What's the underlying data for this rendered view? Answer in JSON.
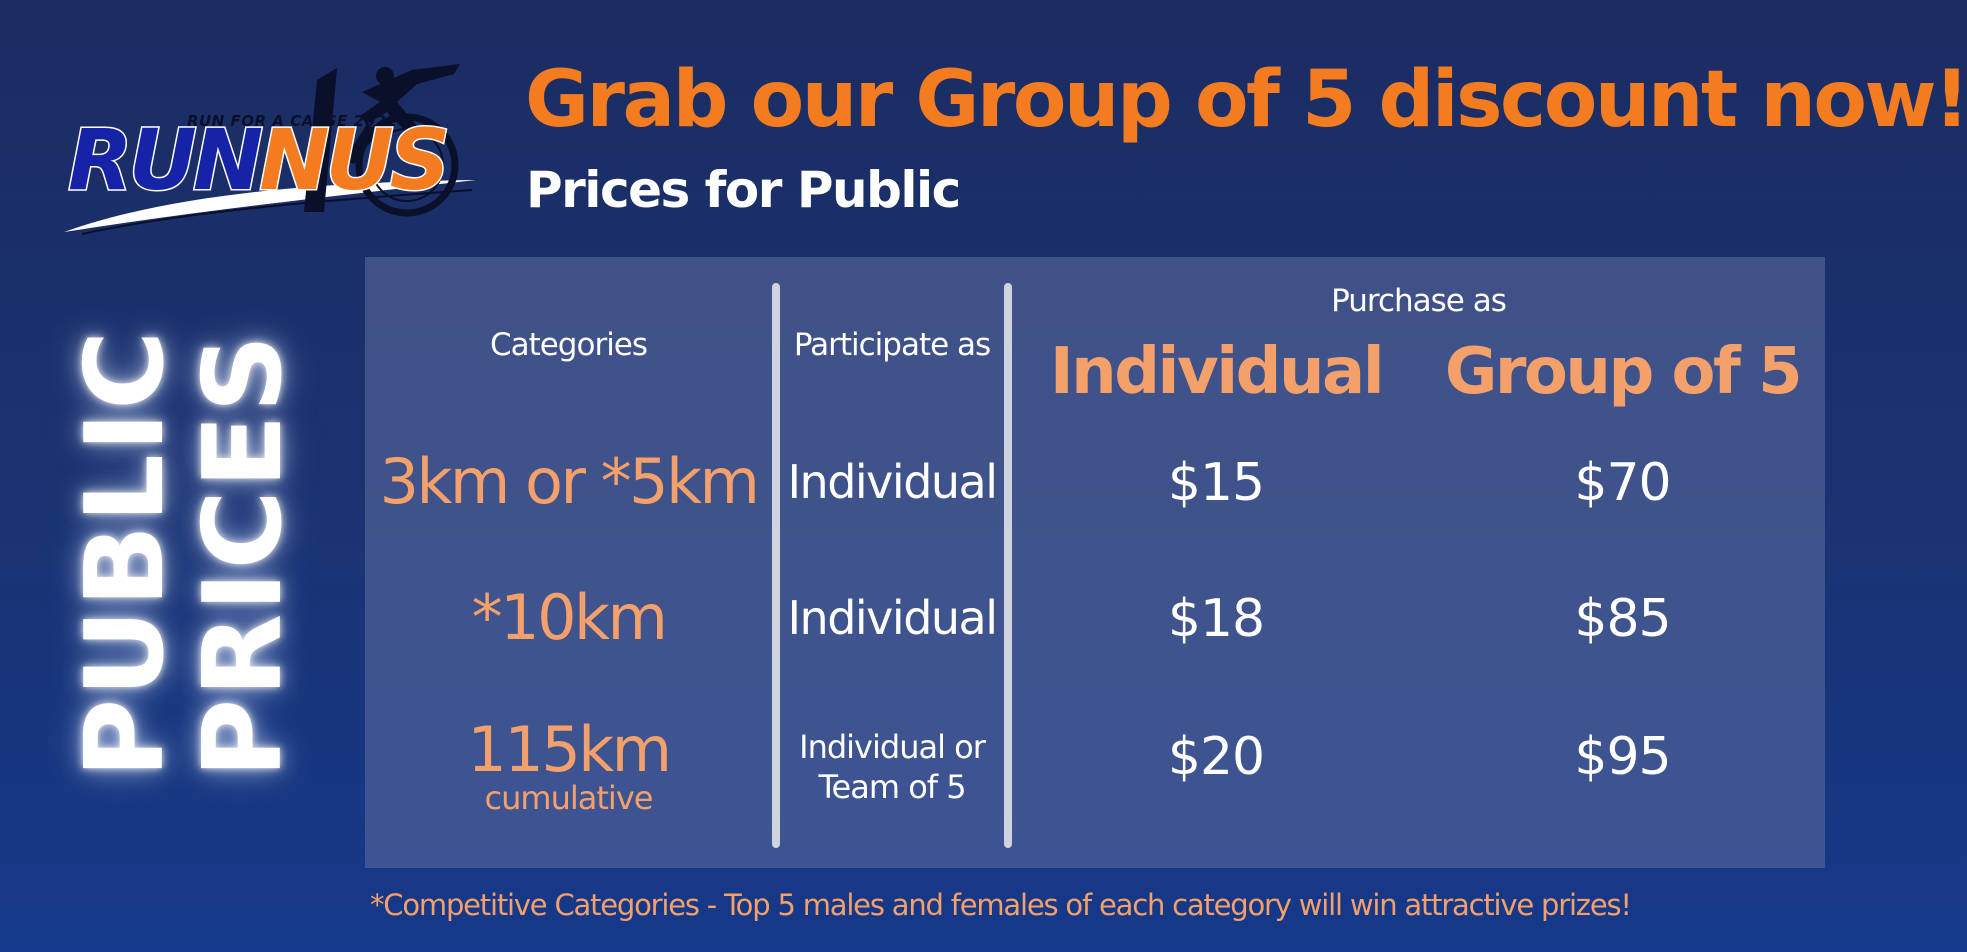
{
  "logo": {
    "tagline": "RUN FOR A CAUSE 2021",
    "word_part1": "RUN",
    "word_part2": "NUS"
  },
  "header": {
    "headline": "Grab our Group of 5 discount now!",
    "subhead": "Prices for Public"
  },
  "side_title": {
    "line1": "PUBLIC",
    "line2": "PRICES"
  },
  "table": {
    "headers": {
      "categories": "Categories",
      "participate_as": "Participate as",
      "purchase_as": "Purchase as",
      "individual": "Individual",
      "group_of_5": "Group of 5"
    },
    "rows": [
      {
        "category": "3km or *5km",
        "category_note": "",
        "participate_as": "Individual",
        "participate_as_line2": "",
        "price_individual": "$15",
        "price_group": "$70"
      },
      {
        "category": "*10km",
        "category_note": "",
        "participate_as": "Individual",
        "participate_as_line2": "",
        "price_individual": "$18",
        "price_group": "$85"
      },
      {
        "category": "115km",
        "category_note": "cumulative",
        "participate_as": "Individual or",
        "participate_as_line2": "Team of 5",
        "price_individual": "$20",
        "price_group": "$95"
      }
    ]
  },
  "footnote": "*Competitive Categories - Top 5 males and females of each category will win attractive prizes!",
  "colors": {
    "accent_orange": "#f47c20",
    "light_orange": "#f4a06a",
    "logo_blue": "#1524a6",
    "background_navy": "#1b2c62"
  }
}
